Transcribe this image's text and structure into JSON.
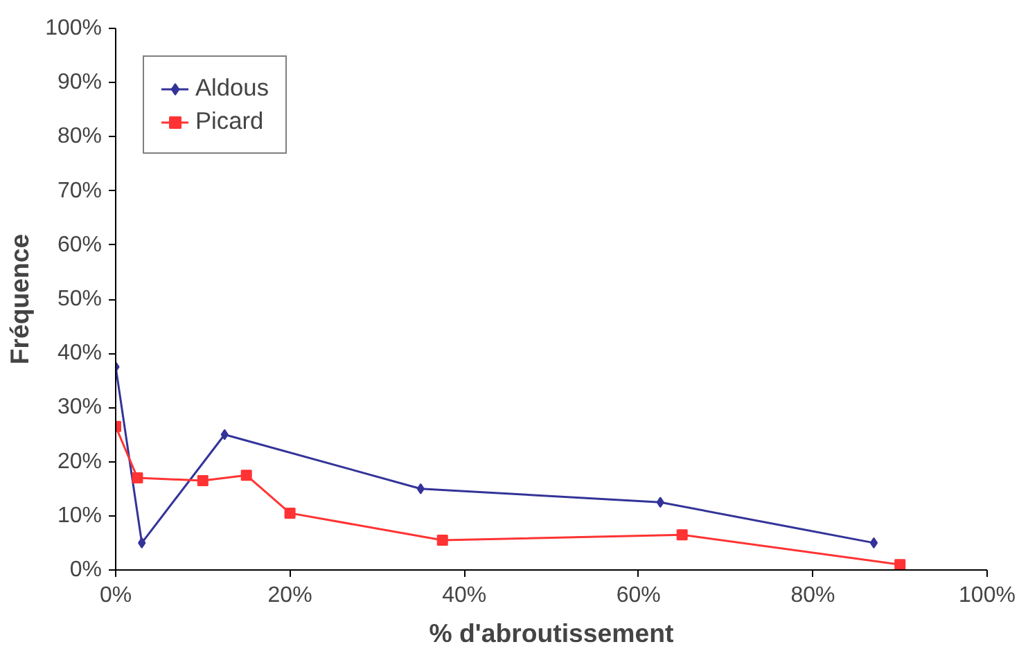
{
  "chart_data": {
    "type": "line",
    "xlabel": "% d'abroutissement",
    "ylabel": "Fréquence",
    "xlim": [
      0,
      100
    ],
    "ylim": [
      0,
      100
    ],
    "xticks": [
      {
        "value": 0,
        "label": "0%"
      },
      {
        "value": 20,
        "label": "20%"
      },
      {
        "value": 40,
        "label": "40%"
      },
      {
        "value": 60,
        "label": "60%"
      },
      {
        "value": 80,
        "label": "80%"
      },
      {
        "value": 100,
        "label": "100%"
      }
    ],
    "yticks": [
      {
        "value": 0,
        "label": "0%"
      },
      {
        "value": 10,
        "label": "10%"
      },
      {
        "value": 20,
        "label": "20%"
      },
      {
        "value": 30,
        "label": "30%"
      },
      {
        "value": 40,
        "label": "40%"
      },
      {
        "value": 50,
        "label": "50%"
      },
      {
        "value": 60,
        "label": "60%"
      },
      {
        "value": 70,
        "label": "70%"
      },
      {
        "value": 80,
        "label": "80%"
      },
      {
        "value": 90,
        "label": "90%"
      },
      {
        "value": 100,
        "label": "100%"
      }
    ],
    "grid": false,
    "legend": "top left",
    "series": [
      {
        "name": "Aldous",
        "color": "#333399",
        "marker": "diamond",
        "x": [
          0,
          3,
          12.5,
          35,
          62.5,
          87
        ],
        "values": [
          37.5,
          5,
          25,
          15,
          12.5,
          5
        ]
      },
      {
        "name": "Picard",
        "color": "#ff3333",
        "marker": "square",
        "x": [
          0,
          2.5,
          10,
          15,
          20,
          37.5,
          65,
          90
        ],
        "values": [
          26.5,
          17,
          16.5,
          17.5,
          10.5,
          5.5,
          6.5,
          1
        ]
      }
    ]
  }
}
